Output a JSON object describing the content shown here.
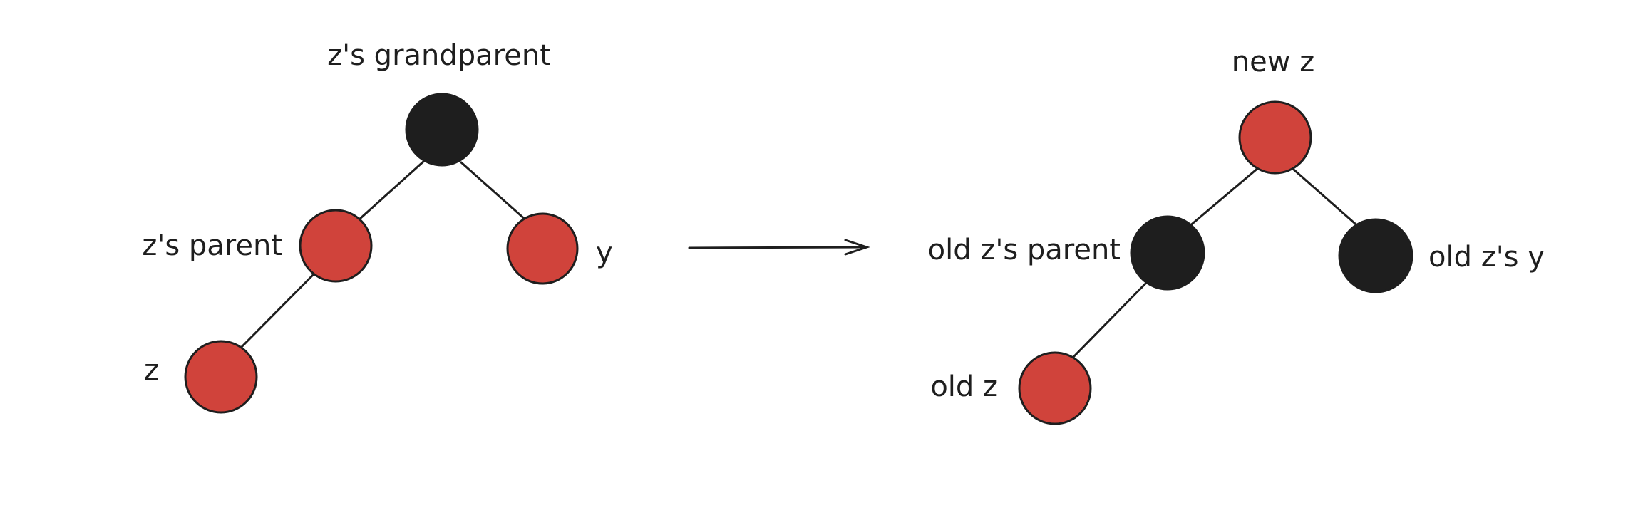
{
  "colors": {
    "red_node": "#d0433b",
    "black_node": "#1e1e1e",
    "stroke": "#1e1e1e",
    "background": "#ffffff"
  },
  "before": {
    "nodes": [
      {
        "id": "grandparent",
        "color": "black",
        "label": "z's grandparent"
      },
      {
        "id": "parent",
        "color": "red",
        "label": "z's parent"
      },
      {
        "id": "uncle",
        "color": "red",
        "label": "y"
      },
      {
        "id": "z",
        "color": "red",
        "label": "z"
      }
    ],
    "edges": [
      [
        "grandparent",
        "parent"
      ],
      [
        "grandparent",
        "uncle"
      ],
      [
        "parent",
        "z"
      ]
    ]
  },
  "after": {
    "nodes": [
      {
        "id": "new_z",
        "color": "red",
        "label": "new z"
      },
      {
        "id": "old_parent",
        "color": "black",
        "label": "old z's parent"
      },
      {
        "id": "old_uncle",
        "color": "black",
        "label": "old z's y"
      },
      {
        "id": "old_z",
        "color": "red",
        "label": "old z"
      }
    ],
    "edges": [
      [
        "new_z",
        "old_parent"
      ],
      [
        "new_z",
        "old_uncle"
      ],
      [
        "old_parent",
        "old_z"
      ]
    ]
  }
}
